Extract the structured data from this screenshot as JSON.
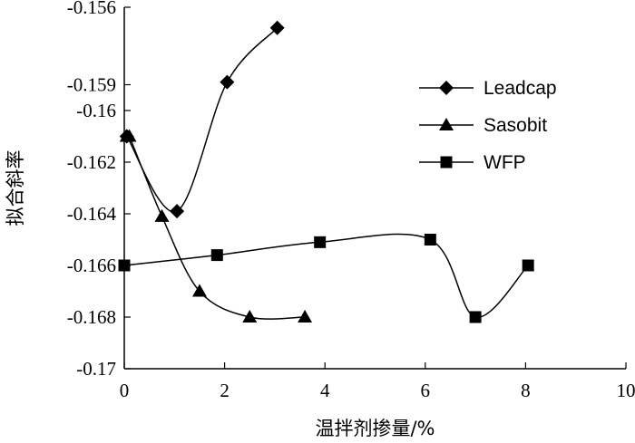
{
  "chart_data": {
    "type": "line",
    "title": "",
    "xlabel": "温拌剂掺量/%",
    "ylabel": "拟合斜率",
    "xlim": [
      0,
      10
    ],
    "ylim": [
      -0.17,
      -0.156
    ],
    "x_ticks": [
      0,
      2,
      4,
      6,
      8,
      10
    ],
    "y_ticks": [
      -0.17,
      -0.168,
      -0.166,
      -0.164,
      -0.162,
      -0.16,
      -0.159,
      -0.156
    ],
    "x_tick_labels": [
      "0",
      "2",
      "4",
      "6",
      "8",
      "10"
    ],
    "y_tick_labels": [
      "-0.17",
      "-0.168",
      "-0.166",
      "-0.164",
      "-0.162",
      "-0.16",
      "-0.159",
      "-0.156"
    ],
    "grid": false,
    "legend_position": "top-right",
    "series": [
      {
        "name": "Leadcap",
        "marker": "diamond",
        "x": [
          0.05,
          1.05,
          2.05,
          3.05
        ],
        "y": [
          -0.161,
          -0.1639,
          -0.1589,
          -0.1568
        ]
      },
      {
        "name": "Sasobit",
        "marker": "triangle",
        "x": [
          0.05,
          0.1,
          0.75,
          1.5,
          2.5,
          3.6
        ],
        "y": [
          -0.161,
          -0.161,
          -0.1641,
          -0.167,
          -0.168,
          -0.168
        ]
      },
      {
        "name": "WFP",
        "marker": "square",
        "x": [
          0.0,
          1.85,
          3.9,
          6.1,
          7.0,
          8.05
        ],
        "y": [
          -0.166,
          -0.1656,
          -0.1651,
          -0.165,
          -0.168,
          -0.166
        ]
      }
    ]
  }
}
